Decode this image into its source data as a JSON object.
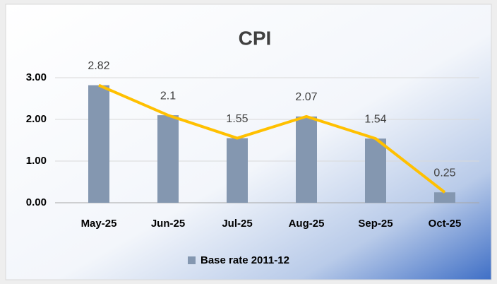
{
  "chart_data": {
    "type": "bar",
    "title": "CPI",
    "categories": [
      "May-25",
      "Jun-25",
      "Jul-25",
      "Aug-25",
      "Sep-25",
      "Oct-25"
    ],
    "series": [
      {
        "name": "Base rate 2011-12",
        "color": "#8497b0",
        "line_color": "#ffc000",
        "values": [
          2.82,
          2.1,
          1.55,
          2.07,
          1.54,
          0.25
        ]
      }
    ],
    "ylim": [
      0,
      3
    ],
    "yticks": [
      {
        "value": 0,
        "label": "0.00"
      },
      {
        "value": 1,
        "label": "1.00"
      },
      {
        "value": 2,
        "label": "2.00"
      },
      {
        "value": 3,
        "label": "3.00"
      }
    ],
    "grid": true,
    "legend": "bottom"
  }
}
